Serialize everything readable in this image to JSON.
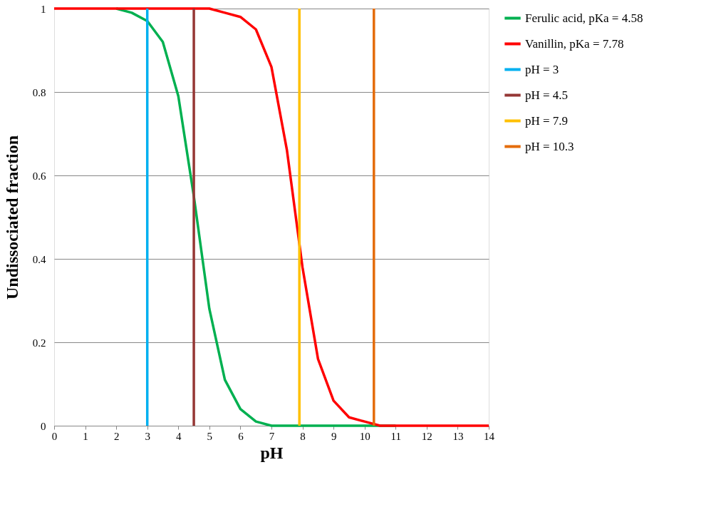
{
  "chart_data": {
    "type": "line",
    "xlabel": "pH",
    "ylabel": "Undissociated  fraction",
    "x": [
      0,
      0.5,
      1,
      1.5,
      2,
      2.5,
      3,
      3.5,
      4,
      4.5,
      5,
      5.5,
      6,
      6.5,
      7,
      7.5,
      8,
      8.5,
      9,
      9.5,
      10,
      10.5,
      11,
      11.5,
      12,
      12.5,
      13,
      13.5,
      14
    ],
    "series": [
      {
        "name": "Ferulic acid, pKa = 4.58",
        "color": "#00b050",
        "values": [
          null,
          null,
          null,
          null,
          1,
          0.99,
          0.97,
          0.92,
          0.79,
          0.55,
          0.28,
          0.11,
          0.04,
          0.01,
          0,
          0,
          0,
          0,
          0,
          0,
          0,
          0,
          0,
          null,
          null,
          null,
          null,
          null,
          null
        ]
      },
      {
        "name": "Vanillin, pKa = 7.78",
        "color": "#ff0000",
        "values": [
          1,
          1,
          1,
          1,
          1,
          1,
          1,
          1,
          1,
          1,
          1,
          0.99,
          0.98,
          0.95,
          0.86,
          0.66,
          0.38,
          0.16,
          0.06,
          0.02,
          0.01,
          0,
          0,
          0,
          0,
          0,
          0,
          0,
          0
        ]
      },
      {
        "name": "pH = 3",
        "color": "#00b0f0",
        "x": [
          3,
          3
        ],
        "values": [
          0,
          1
        ]
      },
      {
        "name": "pH = 4.5",
        "color": "#953735",
        "x": [
          4.5,
          4.5
        ],
        "values": [
          0,
          1
        ]
      },
      {
        "name": "pH = 7.9",
        "color": "#ffc000",
        "x": [
          7.9,
          7.9
        ],
        "values": [
          0,
          1
        ]
      },
      {
        "name": "pH = 10.3",
        "color": "#e46c0a",
        "x": [
          10.3,
          10.3
        ],
        "values": [
          0,
          1
        ]
      }
    ],
    "xlim": [
      0,
      14
    ],
    "xticks": [
      0,
      1,
      2,
      3,
      4,
      5,
      6,
      7,
      8,
      9,
      10,
      11,
      12,
      13,
      14
    ],
    "ylim": [
      0,
      1
    ],
    "yticks": [
      0,
      0.2,
      0.4,
      0.6,
      0.8,
      1
    ],
    "grid": "y",
    "legend": "right",
    "marker": "none",
    "line_style": "solid"
  }
}
